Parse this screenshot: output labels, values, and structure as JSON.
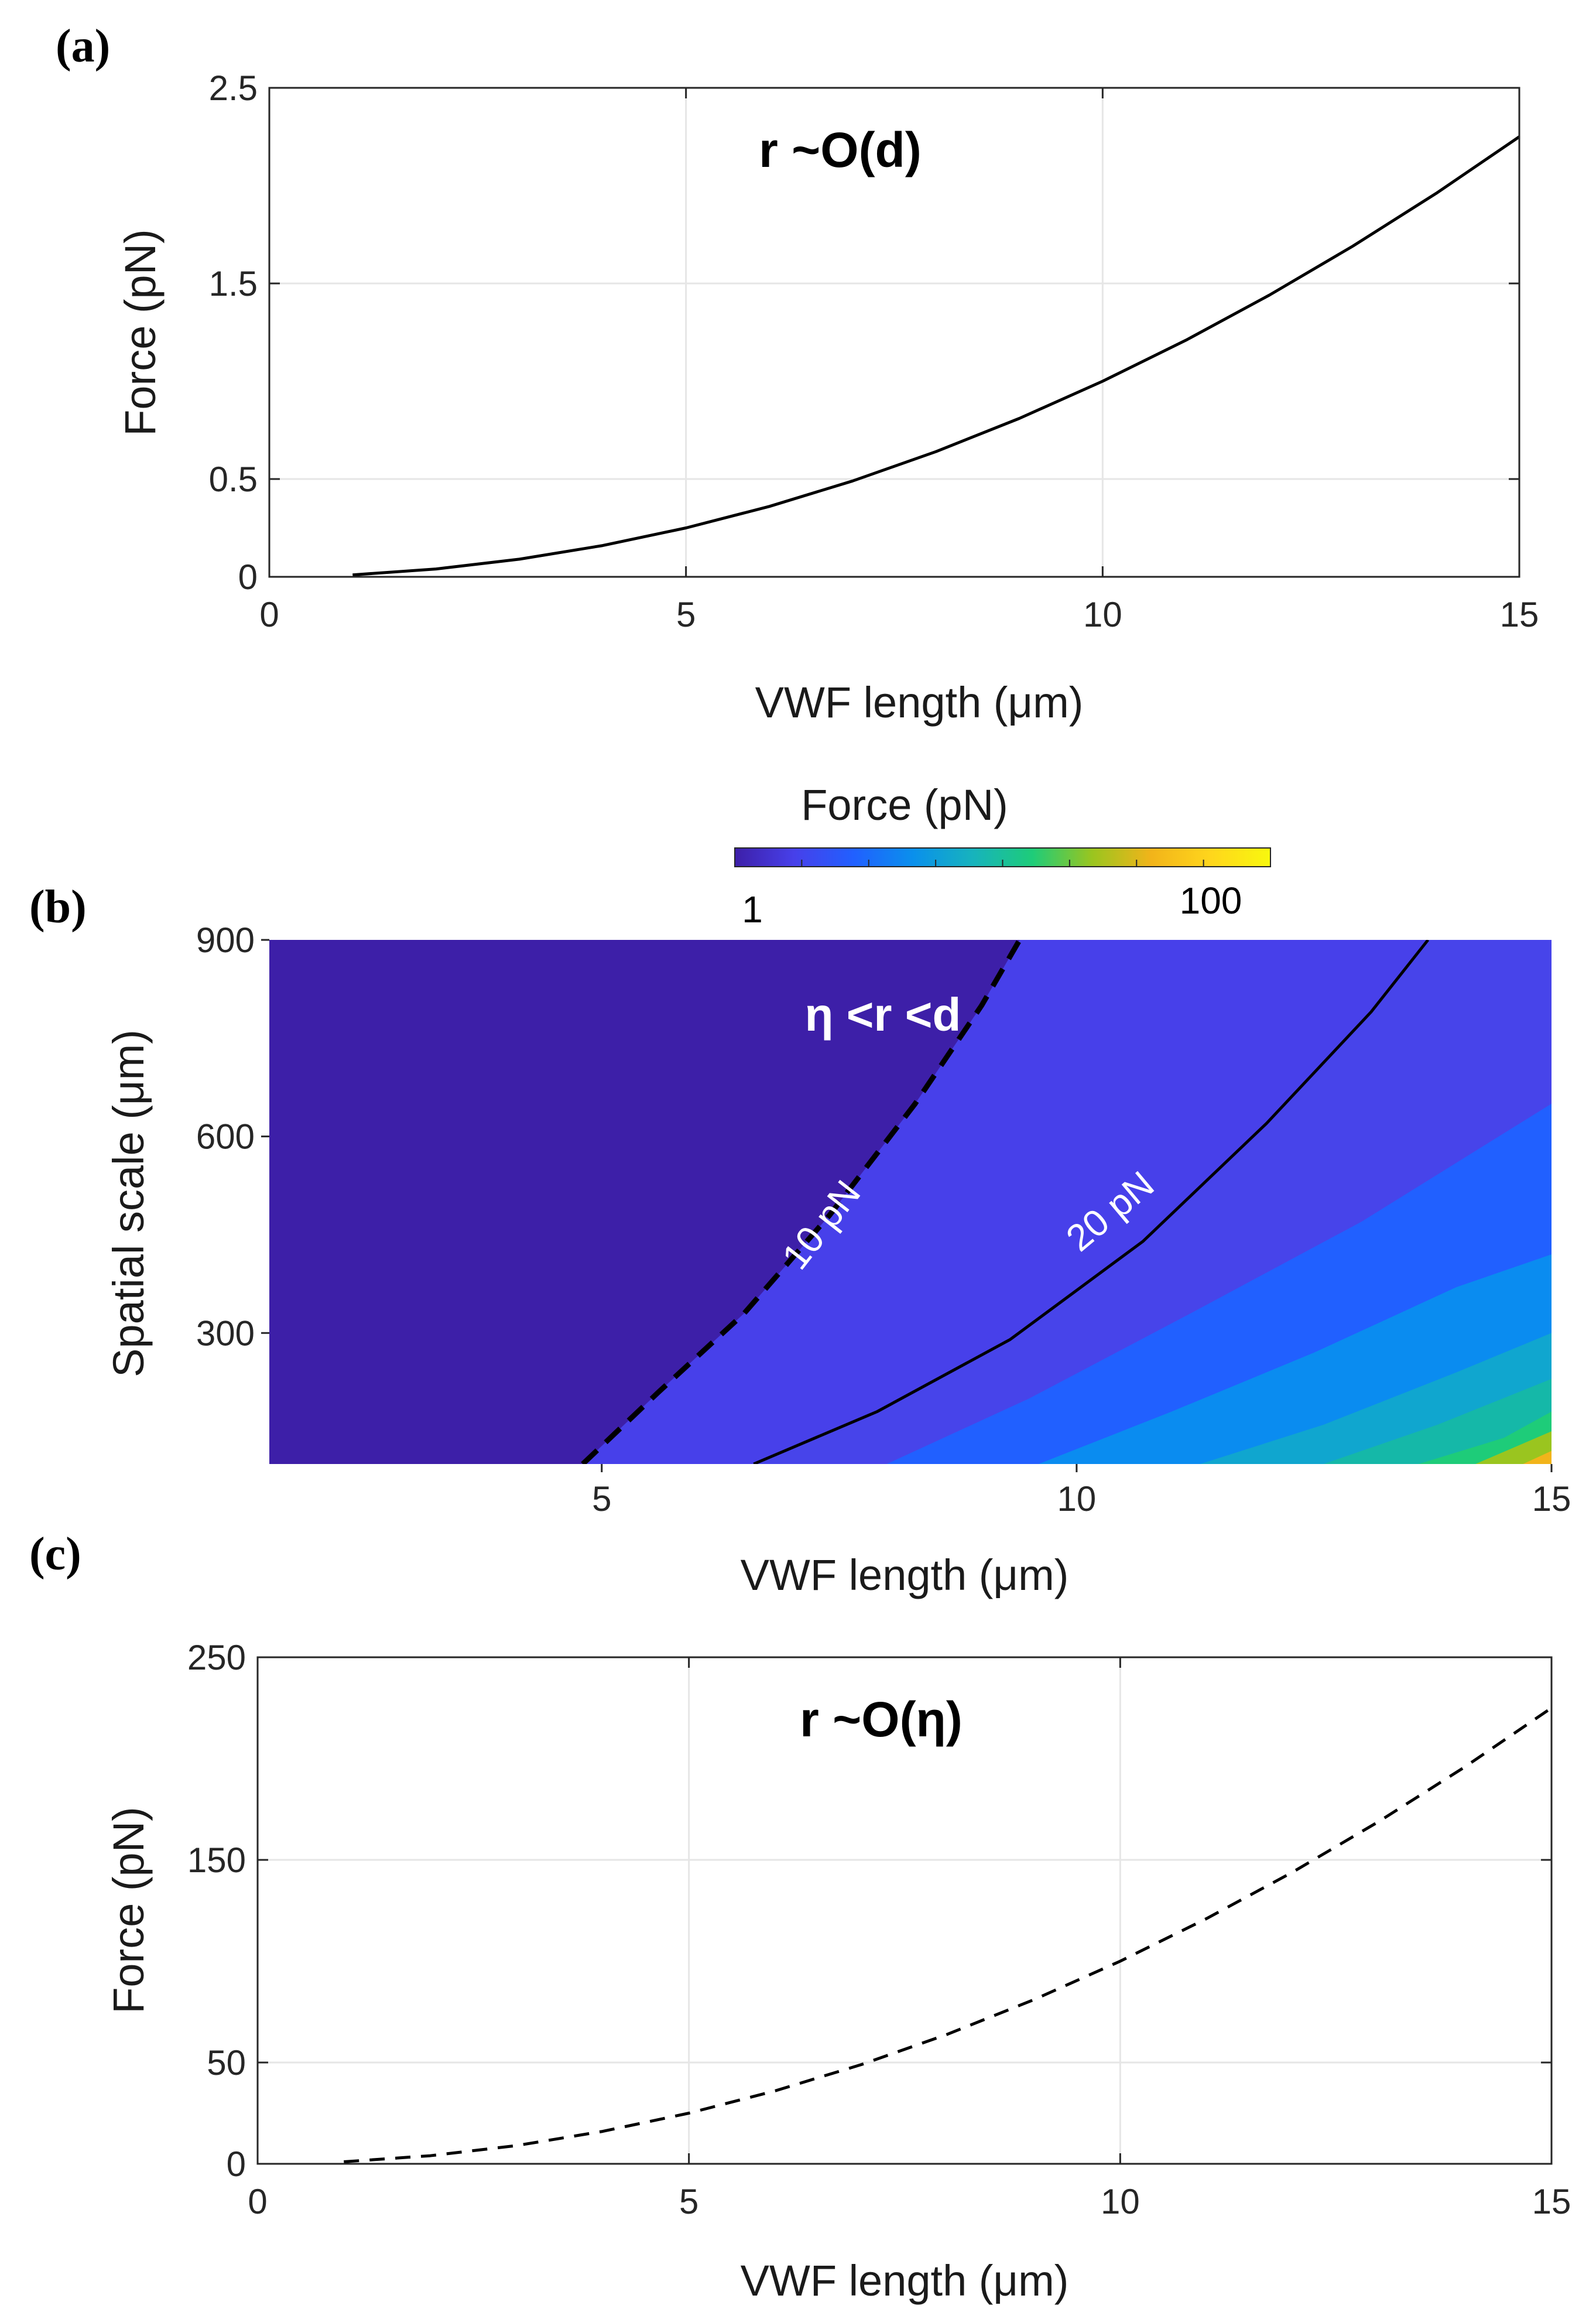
{
  "chart_data": [
    {
      "id": "a",
      "panel_label": "(a)",
      "type": "line",
      "xlabel": "VWF length (μm)",
      "ylabel": "Force (pN)",
      "annotation": "r ~O(d)",
      "xlim": [
        0,
        15
      ],
      "ylim": [
        0,
        2.5
      ],
      "xticks": [
        "0",
        "5",
        "10",
        "15"
      ],
      "yticks": [
        "0",
        "0.5",
        "1.5",
        "2.5"
      ],
      "grid": true,
      "series": [
        {
          "name": "r ~O(d)",
          "style": "solid",
          "x": [
            1,
            2,
            3,
            4,
            5,
            6,
            7,
            8,
            9,
            10,
            11,
            12,
            13,
            14,
            15
          ],
          "y": [
            0.01,
            0.04,
            0.09,
            0.16,
            0.25,
            0.36,
            0.49,
            0.64,
            0.81,
            1.0,
            1.21,
            1.44,
            1.69,
            1.96,
            2.25
          ]
        }
      ]
    },
    {
      "id": "b",
      "panel_label": "(b)",
      "type": "heatmap",
      "xlabel": "VWF length (μm)",
      "ylabel": "Spatial scale (μm)",
      "annotation": "η <r <d",
      "xlim": [
        1.5,
        15
      ],
      "ylim": [
        100,
        900
      ],
      "xticks": [
        "5",
        "10",
        "15"
      ],
      "yticks": [
        "300",
        "600",
        "900"
      ],
      "colorbar": {
        "label": "Force (pN)",
        "scale": "log",
        "tick_labels": [
          "1",
          "100"
        ],
        "colors": [
          "#3d1fa8",
          "#4740ea",
          "#2160ff",
          "#0a90ec",
          "#17b3bd",
          "#1ecc79",
          "#9ac51f",
          "#f2b41a",
          "#ffd61c",
          "#f8f80e"
        ]
      },
      "contour_lines": [
        {
          "label": "10 pN",
          "style": "dashed",
          "x": [
            4.8,
            5.6,
            6.5,
            7.4,
            8.3,
            9.0,
            9.4
          ],
          "y": [
            100,
            210,
            330,
            480,
            650,
            800,
            900
          ]
        },
        {
          "label": "20 pN",
          "style": "solid",
          "x": [
            6.6,
            7.9,
            9.3,
            10.7,
            12.0,
            13.1,
            13.7
          ],
          "y": [
            100,
            180,
            290,
            440,
            620,
            790,
            900
          ]
        }
      ],
      "band_boundaries": [
        {
          "x": [
            8.0,
            9.5,
            11.2,
            13.0,
            15.0
          ],
          "y": [
            100,
            200,
            330,
            470,
            650
          ]
        },
        {
          "x": [
            9.6,
            11.0,
            12.5,
            14.0,
            15.0
          ],
          "y": [
            100,
            180,
            270,
            370,
            420
          ]
        },
        {
          "x": [
            11.3,
            12.6,
            14.0,
            15.0
          ],
          "y": [
            100,
            160,
            240,
            300
          ]
        },
        {
          "x": [
            12.6,
            13.8,
            15.0
          ],
          "y": [
            100,
            160,
            230
          ]
        },
        {
          "x": [
            13.6,
            14.5,
            15.0
          ],
          "y": [
            100,
            140,
            180
          ]
        },
        {
          "x": [
            14.2,
            15.0
          ],
          "y": [
            100,
            150
          ]
        },
        {
          "x": [
            14.7,
            15.0
          ],
          "y": [
            100,
            120
          ]
        }
      ]
    },
    {
      "id": "c",
      "panel_label": "(c)",
      "type": "line",
      "xlabel": "VWF length (μm)",
      "ylabel": "Force (pN)",
      "annotation": "r ~O(η)",
      "xlim": [
        0,
        15
      ],
      "ylim": [
        0,
        250
      ],
      "xticks": [
        "0",
        "5",
        "10",
        "15"
      ],
      "yticks": [
        "0",
        "50",
        "150",
        "250"
      ],
      "grid": true,
      "series": [
        {
          "name": "r ~O(η)",
          "style": "dashed",
          "x": [
            1,
            2,
            3,
            4,
            5,
            6,
            7,
            8,
            9,
            10,
            11,
            12,
            13,
            14,
            15
          ],
          "y": [
            1,
            4,
            9,
            16,
            25,
            36,
            49,
            64,
            81,
            100,
            121,
            144,
            169,
            196,
            225
          ]
        }
      ]
    }
  ]
}
